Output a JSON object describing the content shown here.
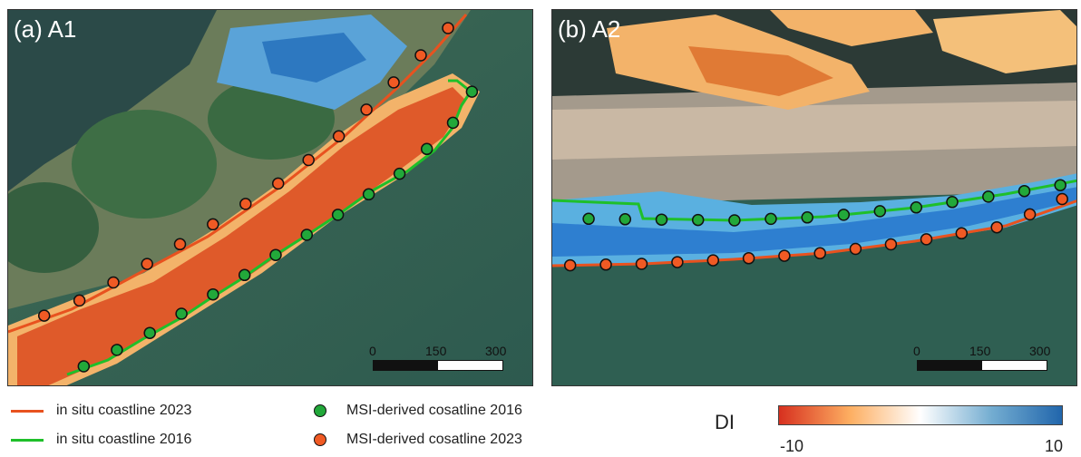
{
  "panels": [
    {
      "label": "(a) A1",
      "scale_bar": {
        "ticks": [
          "0",
          "150",
          "300 m"
        ]
      }
    },
    {
      "label": "(b) A2",
      "scale_bar": {
        "ticks": [
          "0",
          "150",
          "300 m"
        ]
      }
    }
  ],
  "legend": {
    "in_situ_2023": {
      "label": "in situ coastline 2023",
      "color": "#e8521f"
    },
    "in_situ_2016": {
      "label": "in situ coastline 2016",
      "color": "#1fbf2a"
    },
    "msi_2016": {
      "label": "MSI-derived cosatline 2016",
      "color": "#22a83a"
    },
    "msi_2023": {
      "label": "MSI-derived cosatline 2023",
      "color": "#f05a24"
    }
  },
  "colorbar": {
    "title": "DI",
    "min_label": "-10",
    "max_label": "10",
    "colors": [
      "#d7301f",
      "#fdae61",
      "#ffffff",
      "#74add1",
      "#2166ac"
    ]
  }
}
